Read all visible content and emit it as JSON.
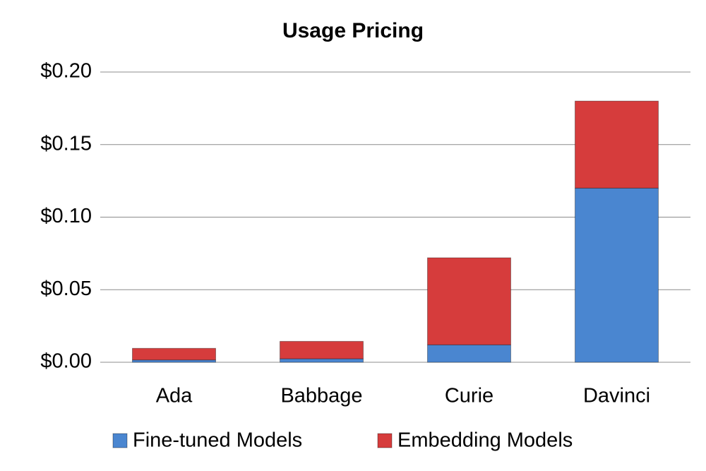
{
  "chart_data": {
    "type": "stacked_bar",
    "title": "Usage Pricing",
    "categories": [
      "Ada",
      "Babbage",
      "Curie",
      "Davinci"
    ],
    "series": [
      {
        "name": "Fine-tuned Models",
        "color": "#4a86d0",
        "values": [
          0.0016,
          0.0024,
          0.012,
          0.12
        ]
      },
      {
        "name": "Embedding Models",
        "color": "#d63c3c",
        "values": [
          0.008,
          0.012,
          0.06,
          0.06
        ]
      }
    ],
    "ylim": [
      0,
      0.2
    ],
    "yticks": [
      {
        "value": 0,
        "label": "$0.00"
      },
      {
        "value": 0.05,
        "label": "$0.05"
      },
      {
        "value": 0.1,
        "label": "$0.10"
      },
      {
        "value": 0.15,
        "label": "$0.15"
      },
      {
        "value": 0.2,
        "label": "$0.20"
      }
    ],
    "grid": true,
    "legend": "bottom"
  }
}
